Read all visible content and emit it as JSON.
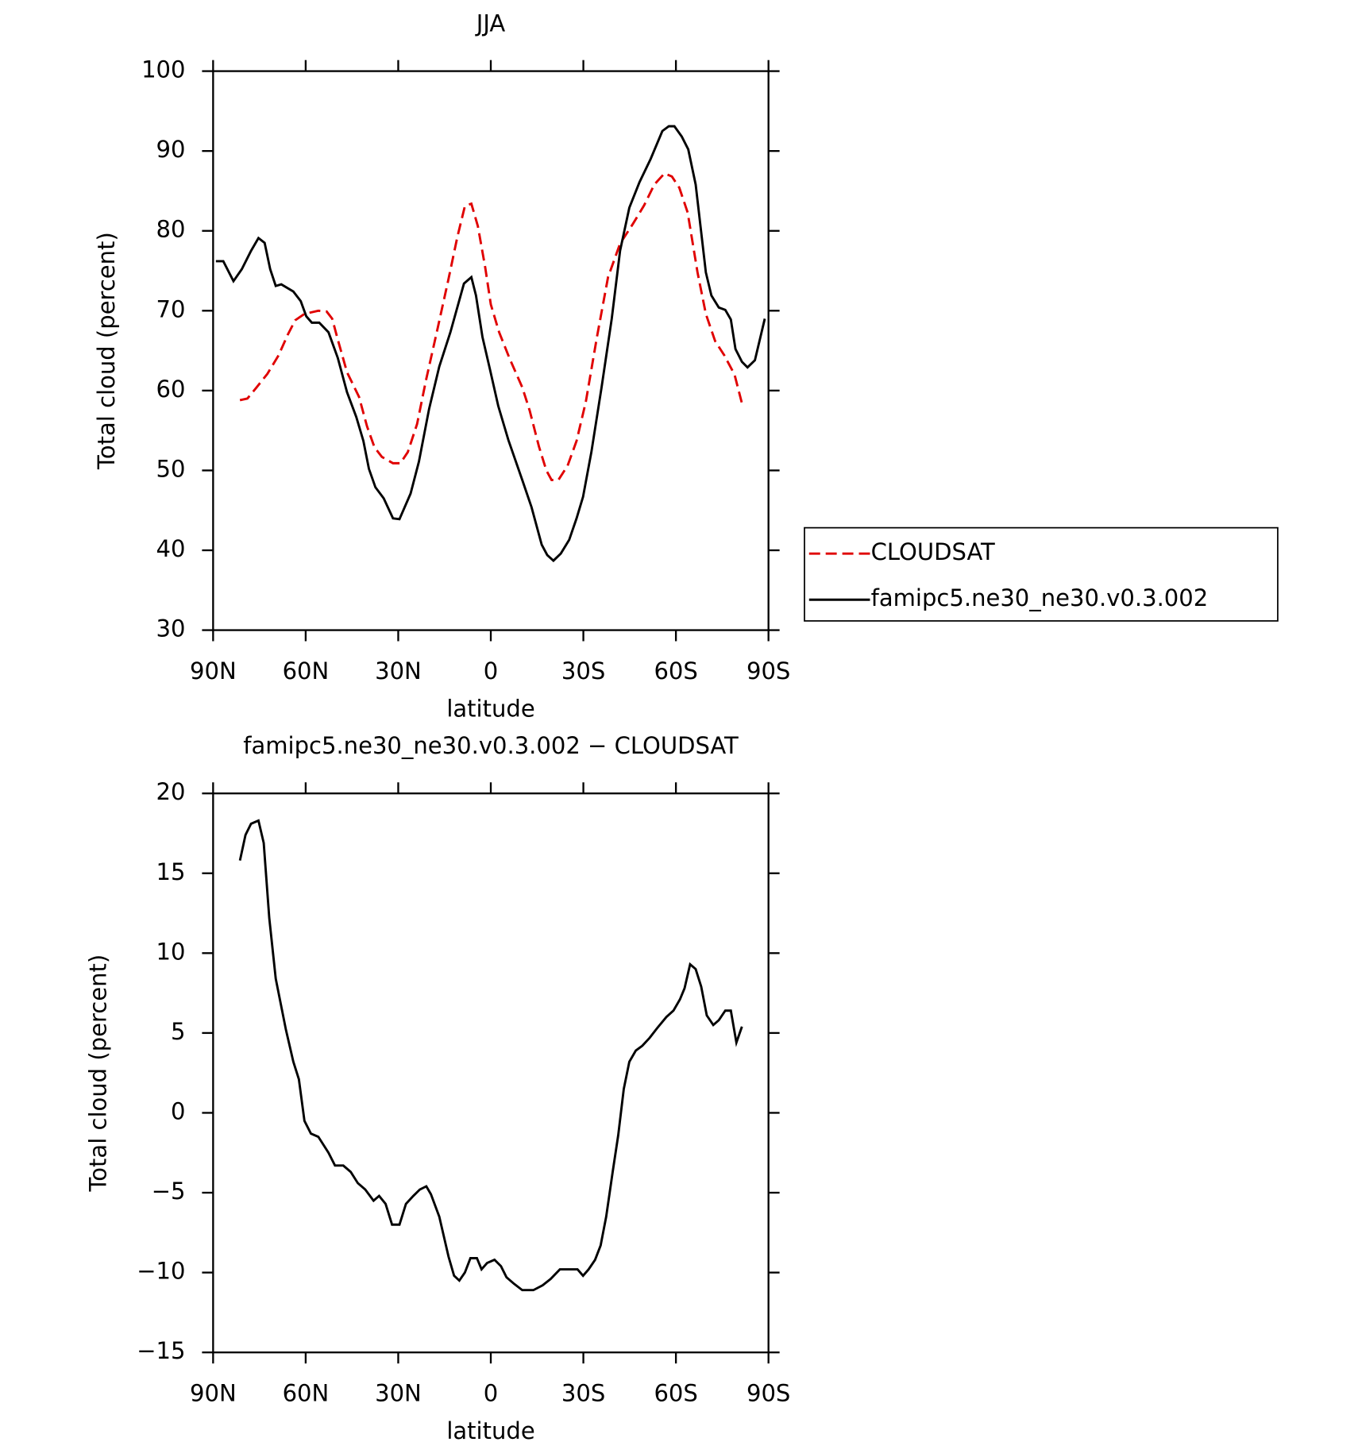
{
  "chart_data": [
    {
      "type": "line",
      "title": "JJA",
      "xlabel": "latitude",
      "ylabel": "Total cloud (percent)",
      "xlim": [
        90,
        -90
      ],
      "xticks": [
        {
          "value": 90,
          "label": "90N"
        },
        {
          "value": 60,
          "label": "60N"
        },
        {
          "value": 30,
          "label": "30N"
        },
        0,
        {
          "value": -30,
          "label": "30S"
        },
        {
          "value": -60,
          "label": "60S"
        },
        {
          "value": -90,
          "label": "90S"
        }
      ],
      "ylim": [
        30,
        100
      ],
      "yticks": [
        30,
        40,
        50,
        60,
        70,
        80,
        90,
        100
      ],
      "legend": "right",
      "series": [
        {
          "name": "CLOUDSAT",
          "color": "#e00000",
          "dash": true,
          "x": [
            81.3,
            78.9,
            75.9,
            72.4,
            68.8,
            65.8,
            63.4,
            60.4,
            55.9,
            53.2,
            51.4,
            49.6,
            46.6,
            42.7,
            40.1,
            37.7,
            35.3,
            31.7,
            29.3,
            26.9,
            23.9,
            21.0,
            17.4,
            13.8,
            10.8,
            8.4,
            6.3,
            4.2,
            1.8,
            0.0,
            -2.7,
            -6.0,
            -10.2,
            -12.6,
            -15.6,
            -18.0,
            -19.7,
            -21.9,
            -24.9,
            -27.8,
            -30.8,
            -34.4,
            -38.0,
            -41.9,
            -46.1,
            -49.7,
            -53.0,
            -56.3,
            -58.7,
            -61.1,
            -63.8,
            -67.0,
            -69.7,
            -72.7,
            -75.7,
            -79.0,
            -81.4
          ],
          "values": [
            58.8,
            59.0,
            60.4,
            62.1,
            64.4,
            67.0,
            68.8,
            69.6,
            70.0,
            69.9,
            69.0,
            66.4,
            62.3,
            59.2,
            55.5,
            52.9,
            51.7,
            50.9,
            50.9,
            52.3,
            55.8,
            61.3,
            67.5,
            73.8,
            79.3,
            83.1,
            83.4,
            80.6,
            75.4,
            70.8,
            67.3,
            64.1,
            60.4,
            57.5,
            53.0,
            50.0,
            48.8,
            48.8,
            50.6,
            53.7,
            58.6,
            66.7,
            74.2,
            78.4,
            80.9,
            83.2,
            85.8,
            87.2,
            86.8,
            85.4,
            82.3,
            74.8,
            69.6,
            66.2,
            64.4,
            62.0,
            58.4
          ]
        },
        {
          "name": "famipc5.ne30_ne30.v0.3.002",
          "color": "#000000",
          "dash": false,
          "x": [
            89.1,
            86.7,
            83.4,
            80.7,
            77.7,
            75.3,
            73.3,
            71.5,
            69.7,
            67.9,
            64.0,
            61.6,
            59.8,
            58.0,
            55.6,
            52.6,
            49.6,
            46.6,
            43.6,
            41.3,
            39.5,
            37.4,
            34.7,
            31.7,
            29.6,
            26.0,
            23.3,
            20.0,
            16.7,
            13.1,
            8.7,
            6.3,
            4.8,
            2.7,
            0.3,
            -2.4,
            -5.7,
            -10.2,
            -13.2,
            -16.5,
            -18.3,
            -20.3,
            -22.7,
            -25.4,
            -27.8,
            -29.9,
            -32.6,
            -35.9,
            -39.2,
            -41.9,
            -44.9,
            -48.2,
            -51.8,
            -55.6,
            -57.7,
            -59.5,
            -61.9,
            -64.0,
            -66.4,
            -69.7,
            -71.5,
            -73.9,
            -76.0,
            -77.8,
            -79.3,
            -81.4,
            -83.2,
            -85.6,
            -88.8
          ],
          "values": [
            76.2,
            76.2,
            73.7,
            75.2,
            77.5,
            79.1,
            78.5,
            75.2,
            73.1,
            73.3,
            72.4,
            71.2,
            69.3,
            68.5,
            68.5,
            67.3,
            64.1,
            59.8,
            56.7,
            53.7,
            50.2,
            47.9,
            46.5,
            44.0,
            43.9,
            47.1,
            51.1,
            57.7,
            63.0,
            67.3,
            73.4,
            74.2,
            71.9,
            66.7,
            62.7,
            58.1,
            53.8,
            48.8,
            45.4,
            40.7,
            39.4,
            38.7,
            39.6,
            41.3,
            44.0,
            46.7,
            52.3,
            60.4,
            69.0,
            77.5,
            82.9,
            86.1,
            89.0,
            92.5,
            93.1,
            93.1,
            91.8,
            90.2,
            85.8,
            74.8,
            71.9,
            70.4,
            70.1,
            68.9,
            65.2,
            63.6,
            62.9,
            63.8,
            69.0
          ]
        }
      ]
    },
    {
      "type": "line",
      "title": "famipc5.ne30_ne30.v0.3.002 − CLOUDSAT",
      "xlabel": "latitude",
      "ylabel": "Total cloud (percent)",
      "xlim": [
        90,
        -90
      ],
      "xticks": [
        {
          "value": 90,
          "label": "90N"
        },
        {
          "value": 60,
          "label": "60N"
        },
        {
          "value": 30,
          "label": "30N"
        },
        0,
        {
          "value": -30,
          "label": "30S"
        },
        {
          "value": -60,
          "label": "60S"
        },
        {
          "value": -90,
          "label": "90S"
        }
      ],
      "ylim": [
        -15,
        20
      ],
      "yticks": [
        {
          "value": -15,
          "label": "−15"
        },
        {
          "value": -10,
          "label": "−10"
        },
        {
          "value": -5,
          "label": "−5"
        },
        0,
        5,
        10,
        15,
        20
      ],
      "series": [
        {
          "color": "#000000",
          "dash": false,
          "x": [
            81.3,
            79.5,
            77.7,
            75.3,
            73.6,
            71.8,
            69.7,
            66.4,
            64.0,
            62.2,
            60.4,
            58.3,
            55.9,
            52.6,
            50.5,
            47.8,
            45.4,
            43.1,
            40.7,
            38.0,
            36.2,
            34.1,
            32.0,
            29.6,
            27.5,
            25.1,
            23.0,
            20.9,
            19.4,
            16.7,
            13.7,
            11.9,
            10.2,
            8.4,
            6.6,
            4.5,
            3.0,
            1.2,
            -1.2,
            -3.3,
            -5.1,
            -7.5,
            -10.2,
            -13.8,
            -16.8,
            -19.4,
            -22.4,
            -25.1,
            -28.1,
            -29.9,
            -31.7,
            -33.8,
            -35.6,
            -37.4,
            -39.5,
            -41.3,
            -43.1,
            -44.9,
            -47.0,
            -49.1,
            -51.5,
            -53.9,
            -56.9,
            -59.2,
            -61.3,
            -62.8,
            -64.6,
            -66.4,
            -68.2,
            -70.0,
            -72.1,
            -73.9,
            -76.0,
            -77.8,
            -79.6,
            -81.4
          ],
          "values": [
            15.8,
            17.4,
            18.1,
            18.3,
            16.9,
            12.2,
            8.4,
            5.2,
            3.2,
            2.1,
            -0.5,
            -1.3,
            -1.5,
            -2.5,
            -3.3,
            -3.3,
            -3.7,
            -4.4,
            -4.8,
            -5.5,
            -5.2,
            -5.7,
            -7.0,
            -7.0,
            -5.7,
            -5.2,
            -4.8,
            -4.6,
            -5.1,
            -6.5,
            -9.0,
            -10.2,
            -10.5,
            -10.0,
            -9.1,
            -9.1,
            -9.8,
            -9.4,
            -9.2,
            -9.6,
            -10.3,
            -10.7,
            -11.1,
            -11.1,
            -10.8,
            -10.4,
            -9.8,
            -9.8,
            -9.8,
            -10.2,
            -9.8,
            -9.2,
            -8.3,
            -6.5,
            -3.7,
            -1.4,
            1.5,
            3.2,
            3.9,
            4.2,
            4.7,
            5.3,
            6.0,
            6.4,
            7.1,
            7.8,
            9.3,
            9.0,
            7.9,
            6.1,
            5.5,
            5.8,
            6.4,
            6.4,
            4.4,
            5.4
          ]
        }
      ]
    }
  ]
}
